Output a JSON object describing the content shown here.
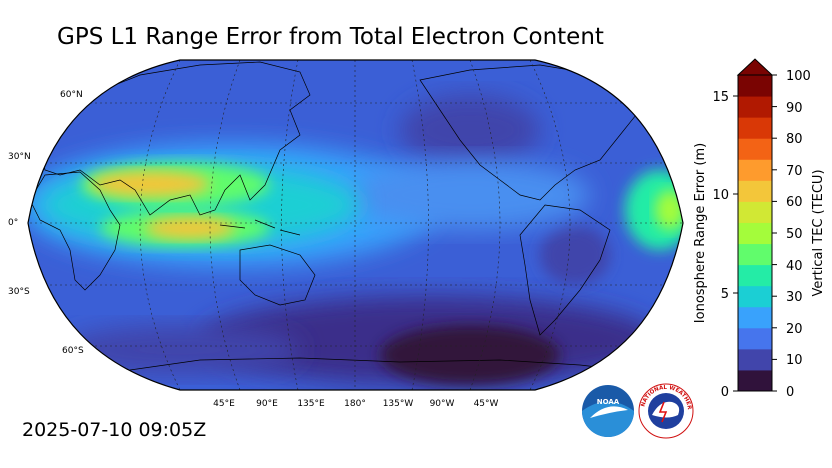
{
  "title": "GPS L1 Range Error from Total Electron Content",
  "timestamp": "2025-07-10 09:05Z",
  "map": {
    "lat_labels": [
      "60°N",
      "30°N",
      "0°",
      "30°S",
      "60°S"
    ],
    "lon_labels": [
      "45°E",
      "90°E",
      "135°E",
      "180°",
      "135°W",
      "90°W",
      "45°W"
    ]
  },
  "colorbar": {
    "left_label": "Ionosphere Range Error (m)",
    "right_label": "Vertical TEC (TECU)",
    "left_ticks": [
      "0",
      "5",
      "10",
      "15"
    ],
    "right_ticks": [
      "0",
      "10",
      "20",
      "30",
      "40",
      "50",
      "60",
      "70",
      "80",
      "90",
      "100"
    ],
    "tec_range": [
      0,
      100
    ],
    "error_range_m": [
      0,
      16.2
    ],
    "colors": [
      "#30123b",
      "#4145ab",
      "#4675ed",
      "#39a2fc",
      "#1bcfd4",
      "#24eca6",
      "#61fc6c",
      "#a4fc3b",
      "#d1e834",
      "#f3c63a",
      "#fe9b2d",
      "#f36315",
      "#d93806",
      "#b11901",
      "#7a0402"
    ],
    "extend": "max"
  },
  "logos": {
    "noaa_text": "NOAA",
    "nws_text": "NATIONAL WEATHER SERVICE"
  }
}
